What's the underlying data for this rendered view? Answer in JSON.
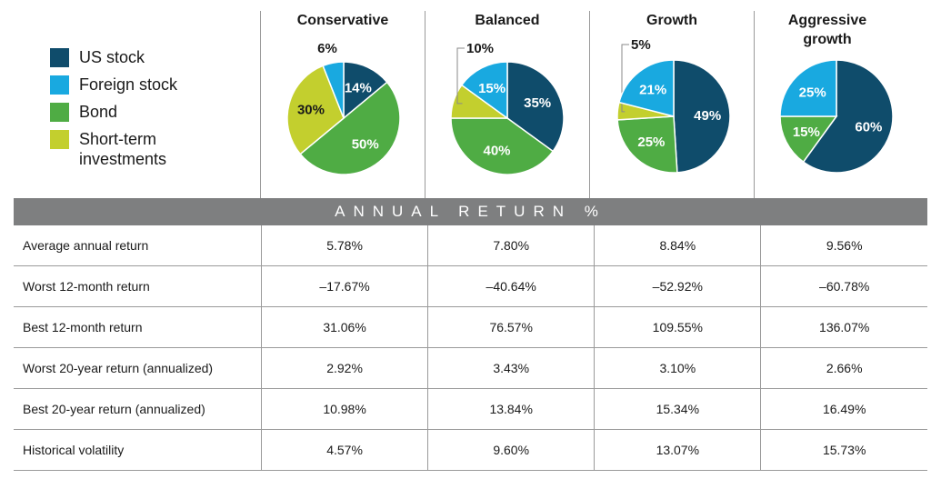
{
  "colors": {
    "us_stock": "#0f4c6b",
    "foreign_stock": "#19a9e0",
    "bond": "#4fac44",
    "short_term": "#c3cf2e",
    "banner_bg": "#7e7f80"
  },
  "legend": [
    {
      "label": "US stock",
      "color": "#0f4c6b"
    },
    {
      "label": "Foreign stock",
      "color": "#19a9e0"
    },
    {
      "label": "Bond",
      "color": "#4fac44"
    },
    {
      "label": "Short-term investments",
      "color": "#c3cf2e"
    }
  ],
  "chart_data": [
    {
      "type": "pie",
      "title": "Conservative",
      "slices": [
        {
          "name": "US stock",
          "value": 14
        },
        {
          "name": "Bond",
          "value": 50
        },
        {
          "name": "Short-term investments",
          "value": 30
        },
        {
          "name": "Foreign stock",
          "value": 6
        }
      ]
    },
    {
      "type": "pie",
      "title": "Balanced",
      "slices": [
        {
          "name": "US stock",
          "value": 35
        },
        {
          "name": "Bond",
          "value": 40
        },
        {
          "name": "Short-term investments",
          "value": 10
        },
        {
          "name": "Foreign stock",
          "value": 15
        }
      ]
    },
    {
      "type": "pie",
      "title": "Growth",
      "slices": [
        {
          "name": "US stock",
          "value": 49
        },
        {
          "name": "Bond",
          "value": 25
        },
        {
          "name": "Short-term investments",
          "value": 5
        },
        {
          "name": "Foreign stock",
          "value": 21
        }
      ]
    },
    {
      "type": "pie",
      "title": "Aggressive growth",
      "slices": [
        {
          "name": "US stock",
          "value": 60
        },
        {
          "name": "Bond",
          "value": 15
        },
        {
          "name": "Foreign stock",
          "value": 25
        }
      ]
    }
  ],
  "banner": "ANNUAL RETURN %",
  "table": {
    "rows": [
      {
        "label": "Average annual return",
        "values": [
          "5.78%",
          "7.80%",
          "8.84%",
          "9.56%"
        ]
      },
      {
        "label": "Worst 12-month return",
        "values": [
          "–17.67%",
          "–40.64%",
          "–52.92%",
          "–60.78%"
        ]
      },
      {
        "label": "Best 12-month return",
        "values": [
          "31.06%",
          "76.57%",
          "109.55%",
          "136.07%"
        ]
      },
      {
        "label": "Worst 20-year return (annualized)",
        "values": [
          "2.92%",
          "3.43%",
          "3.10%",
          "2.66%"
        ]
      },
      {
        "label": "Best 20-year return (annualized)",
        "values": [
          "10.98%",
          "13.84%",
          "15.34%",
          "16.49%"
        ]
      },
      {
        "label": "Historical volatility",
        "values": [
          "4.57%",
          "9.60%",
          "13.07%",
          "15.73%"
        ]
      }
    ]
  }
}
